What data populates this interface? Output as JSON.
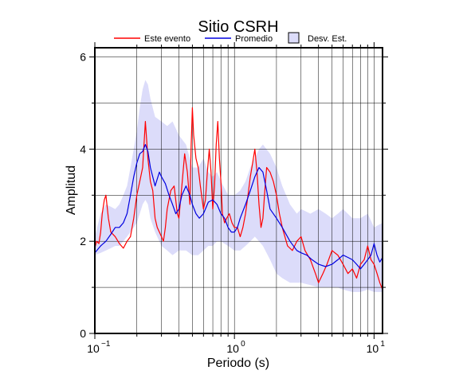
{
  "chart_data": {
    "type": "line",
    "title": "Sitio CSRH",
    "xlabel": "Periodo (s)",
    "ylabel": "Amplitud",
    "xscale": "log",
    "xlim": [
      0.1,
      11.5
    ],
    "ylim": [
      0,
      6.2
    ],
    "yticks": [
      0,
      2,
      4,
      6
    ],
    "xticks": [
      {
        "value": 0.1,
        "base": "10",
        "exp": "−1"
      },
      {
        "value": 1,
        "base": "10",
        "exp": "0"
      },
      {
        "value": 10,
        "base": "10",
        "exp": "1"
      }
    ],
    "grid": true,
    "legend_position": "top",
    "legend": [
      {
        "label": "Este evento",
        "kind": "line",
        "color": "#ff0000"
      },
      {
        "label": "Promedio",
        "kind": "line",
        "color": "#0000e0"
      },
      {
        "label": "Desv. Est.",
        "kind": "band",
        "color": "#dcdcfa"
      }
    ],
    "band": {
      "x": [
        0.1,
        0.11,
        0.12,
        0.13,
        0.14,
        0.15,
        0.16,
        0.17,
        0.18,
        0.19,
        0.2,
        0.21,
        0.22,
        0.23,
        0.24,
        0.25,
        0.27,
        0.3,
        0.33,
        0.36,
        0.4,
        0.45,
        0.5,
        0.55,
        0.6,
        0.65,
        0.7,
        0.75,
        0.8,
        0.9,
        1.0,
        1.1,
        1.2,
        1.3,
        1.4,
        1.5,
        1.6,
        1.8,
        2.0,
        2.2,
        2.5,
        2.8,
        3.0,
        3.5,
        4.0,
        4.5,
        5.0,
        5.5,
        6.0,
        7.0,
        8.0,
        9.0,
        10.0,
        11.5
      ],
      "upper": [
        2.1,
        2.6,
        2.8,
        2.75,
        2.7,
        2.8,
        3.0,
        3.2,
        3.6,
        4.0,
        4.4,
        4.9,
        5.3,
        5.5,
        5.4,
        5.1,
        4.7,
        4.6,
        4.5,
        4.6,
        4.3,
        4.1,
        3.6,
        3.6,
        3.8,
        3.5,
        3.4,
        3.5,
        3.3,
        3.0,
        3.0,
        3.1,
        3.3,
        3.6,
        3.8,
        4.0,
        4.1,
        3.9,
        3.6,
        3.2,
        2.8,
        2.6,
        2.7,
        2.6,
        2.7,
        2.6,
        2.5,
        2.6,
        2.7,
        2.5,
        2.5,
        2.6,
        2.3,
        2.4
      ],
      "lower": [
        1.7,
        1.75,
        1.8,
        1.85,
        1.9,
        1.9,
        2.0,
        2.1,
        2.2,
        2.3,
        2.4,
        2.6,
        2.8,
        2.9,
        2.8,
        2.5,
        2.2,
        1.9,
        1.8,
        1.7,
        1.8,
        1.8,
        1.7,
        1.7,
        1.8,
        1.9,
        1.9,
        2.0,
        2.0,
        1.9,
        1.8,
        1.8,
        1.9,
        2.0,
        2.1,
        2.0,
        1.9,
        1.6,
        1.3,
        1.2,
        1.1,
        1.1,
        1.1,
        1.05,
        1.0,
        1.0,
        1.0,
        1.0,
        0.95,
        0.9,
        0.9,
        0.95,
        0.9,
        0.9
      ]
    },
    "series": [
      {
        "name": "Este evento",
        "color": "#ff0000",
        "x": [
          0.1,
          0.103,
          0.107,
          0.11,
          0.113,
          0.117,
          0.12,
          0.125,
          0.13,
          0.14,
          0.15,
          0.16,
          0.17,
          0.18,
          0.19,
          0.2,
          0.21,
          0.22,
          0.225,
          0.23,
          0.235,
          0.24,
          0.25,
          0.26,
          0.27,
          0.28,
          0.29,
          0.3,
          0.31,
          0.32,
          0.33,
          0.35,
          0.37,
          0.39,
          0.4,
          0.42,
          0.44,
          0.46,
          0.48,
          0.49,
          0.5,
          0.51,
          0.53,
          0.55,
          0.57,
          0.6,
          0.62,
          0.64,
          0.66,
          0.68,
          0.7,
          0.72,
          0.74,
          0.76,
          0.78,
          0.8,
          0.82,
          0.85,
          0.88,
          0.92,
          0.96,
          1.0,
          1.05,
          1.1,
          1.15,
          1.2,
          1.25,
          1.3,
          1.35,
          1.4,
          1.45,
          1.5,
          1.55,
          1.6,
          1.65,
          1.7,
          1.8,
          1.9,
          2.0,
          2.1,
          2.2,
          2.4,
          2.6,
          2.8,
          3.0,
          3.2,
          3.5,
          3.8,
          4.0,
          4.3,
          4.6,
          5.0,
          5.5,
          6.0,
          6.5,
          7.0,
          7.5,
          8.0,
          8.5,
          9.0,
          9.5,
          10.0,
          10.5,
          11.0,
          11.5
        ],
        "y": [
          1.85,
          2.0,
          1.95,
          2.2,
          2.6,
          2.9,
          3.0,
          2.5,
          2.2,
          2.1,
          1.95,
          1.85,
          2.0,
          2.1,
          2.5,
          3.0,
          3.3,
          3.6,
          4.1,
          4.6,
          4.2,
          3.8,
          3.3,
          3.1,
          2.5,
          2.3,
          2.2,
          2.1,
          2.0,
          2.3,
          2.7,
          3.1,
          3.2,
          2.6,
          2.5,
          3.2,
          3.9,
          3.5,
          2.8,
          4.1,
          4.9,
          4.3,
          3.8,
          3.6,
          3.2,
          2.7,
          2.9,
          3.5,
          4.0,
          3.5,
          2.7,
          3.2,
          4.1,
          4.6,
          3.8,
          3.3,
          2.6,
          2.4,
          2.5,
          2.6,
          2.4,
          2.3,
          2.3,
          2.1,
          2.3,
          2.6,
          3.0,
          3.4,
          3.7,
          4.0,
          3.5,
          2.8,
          2.3,
          2.5,
          3.1,
          3.6,
          3.5,
          3.3,
          3.0,
          2.6,
          2.3,
          1.9,
          1.8,
          2.0,
          2.1,
          1.8,
          1.6,
          1.3,
          1.1,
          1.3,
          1.5,
          1.8,
          1.7,
          1.5,
          1.3,
          1.4,
          1.2,
          1.5,
          1.6,
          1.9,
          1.6,
          1.5,
          1.3,
          1.1,
          0.95
        ]
      },
      {
        "name": "Promedio",
        "color": "#0000e0",
        "x": [
          0.1,
          0.11,
          0.12,
          0.13,
          0.14,
          0.15,
          0.16,
          0.17,
          0.18,
          0.19,
          0.2,
          0.21,
          0.22,
          0.23,
          0.24,
          0.25,
          0.27,
          0.29,
          0.3,
          0.32,
          0.34,
          0.36,
          0.38,
          0.4,
          0.42,
          0.45,
          0.48,
          0.5,
          0.53,
          0.56,
          0.6,
          0.65,
          0.7,
          0.75,
          0.8,
          0.85,
          0.9,
          0.95,
          1.0,
          1.05,
          1.1,
          1.2,
          1.3,
          1.4,
          1.5,
          1.6,
          1.7,
          1.8,
          2.0,
          2.2,
          2.5,
          2.8,
          3.0,
          3.3,
          3.6,
          4.0,
          4.5,
          5.0,
          5.5,
          6.0,
          6.5,
          7.0,
          7.5,
          8.0,
          8.5,
          9.0,
          9.5,
          10.0,
          10.5,
          11.0,
          11.5
        ],
        "y": [
          1.75,
          1.9,
          2.0,
          2.15,
          2.3,
          2.3,
          2.4,
          2.6,
          3.0,
          3.4,
          3.7,
          3.9,
          3.95,
          4.1,
          3.95,
          3.6,
          3.2,
          3.5,
          3.4,
          3.25,
          3.0,
          2.8,
          2.6,
          2.7,
          3.0,
          3.2,
          3.0,
          2.8,
          2.6,
          2.5,
          2.6,
          2.85,
          2.9,
          2.8,
          2.6,
          2.5,
          2.3,
          2.2,
          2.2,
          2.3,
          2.5,
          2.8,
          3.1,
          3.4,
          3.6,
          3.5,
          3.1,
          2.7,
          2.5,
          2.3,
          2.0,
          1.8,
          1.75,
          1.7,
          1.6,
          1.5,
          1.45,
          1.5,
          1.6,
          1.7,
          1.65,
          1.6,
          1.5,
          1.4,
          1.5,
          1.6,
          1.7,
          1.95,
          1.7,
          1.55,
          1.65
        ]
      }
    ]
  }
}
